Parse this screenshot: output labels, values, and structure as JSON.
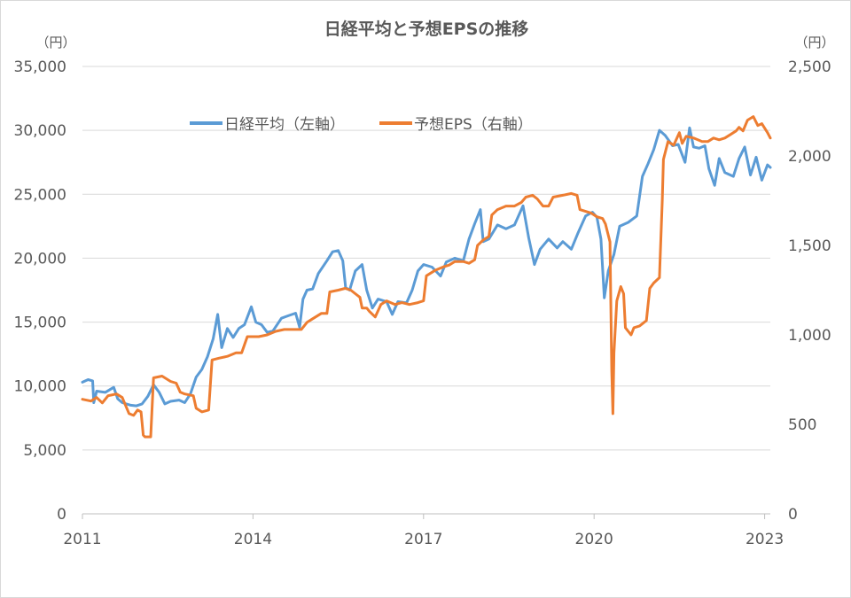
{
  "chart_data": {
    "type": "line",
    "title": "日経平均と予想EPSの推移",
    "y_left_unit": "（円）",
    "y_right_unit": "（円）",
    "y_left_range": [
      0,
      35000
    ],
    "y_right_range": [
      0,
      2500
    ],
    "y_left_ticks": [
      "0",
      "5,000",
      "10,000",
      "15,000",
      "20,000",
      "25,000",
      "30,000",
      "35,000"
    ],
    "y_right_ticks": [
      "0",
      "500",
      "1,000",
      "1,500",
      "2,000",
      "2,500"
    ],
    "x_range": [
      2011,
      2023.1
    ],
    "x_ticks": [
      "2011",
      "2014",
      "2017",
      "2020",
      "2023"
    ],
    "grid": true,
    "legend_position": "top-center",
    "series": [
      {
        "name": "日経平均（左軸）",
        "axis": "left",
        "color": "#5b9bd5",
        "points": [
          [
            2011.0,
            10300
          ],
          [
            2011.1,
            10500
          ],
          [
            2011.18,
            10400
          ],
          [
            2011.2,
            8700
          ],
          [
            2011.25,
            9600
          ],
          [
            2011.4,
            9500
          ],
          [
            2011.55,
            9900
          ],
          [
            2011.62,
            9000
          ],
          [
            2011.7,
            8700
          ],
          [
            2011.85,
            8500
          ],
          [
            2011.95,
            8450
          ],
          [
            2012.05,
            8600
          ],
          [
            2012.15,
            9200
          ],
          [
            2012.25,
            10100
          ],
          [
            2012.35,
            9500
          ],
          [
            2012.45,
            8600
          ],
          [
            2012.55,
            8800
          ],
          [
            2012.7,
            8900
          ],
          [
            2012.8,
            8700
          ],
          [
            2012.9,
            9400
          ],
          [
            2013.0,
            10700
          ],
          [
            2013.1,
            11300
          ],
          [
            2013.2,
            12300
          ],
          [
            2013.3,
            13700
          ],
          [
            2013.38,
            15600
          ],
          [
            2013.45,
            13000
          ],
          [
            2013.55,
            14500
          ],
          [
            2013.65,
            13800
          ],
          [
            2013.75,
            14500
          ],
          [
            2013.85,
            14800
          ],
          [
            2013.97,
            16200
          ],
          [
            2014.05,
            15000
          ],
          [
            2014.15,
            14800
          ],
          [
            2014.25,
            14200
          ],
          [
            2014.35,
            14300
          ],
          [
            2014.5,
            15300
          ],
          [
            2014.62,
            15500
          ],
          [
            2014.75,
            15700
          ],
          [
            2014.82,
            14600
          ],
          [
            2014.88,
            16800
          ],
          [
            2014.95,
            17500
          ],
          [
            2015.05,
            17600
          ],
          [
            2015.15,
            18800
          ],
          [
            2015.3,
            19800
          ],
          [
            2015.4,
            20500
          ],
          [
            2015.5,
            20600
          ],
          [
            2015.58,
            19800
          ],
          [
            2015.63,
            17700
          ],
          [
            2015.7,
            17500
          ],
          [
            2015.8,
            19000
          ],
          [
            2015.92,
            19500
          ],
          [
            2016.0,
            17500
          ],
          [
            2016.1,
            16100
          ],
          [
            2016.2,
            16800
          ],
          [
            2016.35,
            16600
          ],
          [
            2016.45,
            15600
          ],
          [
            2016.55,
            16600
          ],
          [
            2016.7,
            16500
          ],
          [
            2016.8,
            17500
          ],
          [
            2016.9,
            19000
          ],
          [
            2017.0,
            19500
          ],
          [
            2017.15,
            19300
          ],
          [
            2017.3,
            18600
          ],
          [
            2017.4,
            19700
          ],
          [
            2017.55,
            20000
          ],
          [
            2017.7,
            19800
          ],
          [
            2017.8,
            21500
          ],
          [
            2017.9,
            22700
          ],
          [
            2018.0,
            23800
          ],
          [
            2018.05,
            21300
          ],
          [
            2018.15,
            21500
          ],
          [
            2018.3,
            22600
          ],
          [
            2018.45,
            22300
          ],
          [
            2018.6,
            22600
          ],
          [
            2018.75,
            24100
          ],
          [
            2018.85,
            21600
          ],
          [
            2018.95,
            19500
          ],
          [
            2019.05,
            20700
          ],
          [
            2019.2,
            21500
          ],
          [
            2019.35,
            20800
          ],
          [
            2019.45,
            21300
          ],
          [
            2019.6,
            20700
          ],
          [
            2019.72,
            22000
          ],
          [
            2019.85,
            23300
          ],
          [
            2019.97,
            23600
          ],
          [
            2020.05,
            23200
          ],
          [
            2020.12,
            21500
          ],
          [
            2020.18,
            16900
          ],
          [
            2020.25,
            19000
          ],
          [
            2020.35,
            20300
          ],
          [
            2020.45,
            22500
          ],
          [
            2020.6,
            22800
          ],
          [
            2020.75,
            23300
          ],
          [
            2020.85,
            26400
          ],
          [
            2020.95,
            27400
          ],
          [
            2021.05,
            28500
          ],
          [
            2021.15,
            30000
          ],
          [
            2021.25,
            29600
          ],
          [
            2021.38,
            28800
          ],
          [
            2021.48,
            28900
          ],
          [
            2021.6,
            27500
          ],
          [
            2021.68,
            30200
          ],
          [
            2021.75,
            28700
          ],
          [
            2021.85,
            28600
          ],
          [
            2021.95,
            28800
          ],
          [
            2022.02,
            27000
          ],
          [
            2022.12,
            25700
          ],
          [
            2022.2,
            27800
          ],
          [
            2022.3,
            26700
          ],
          [
            2022.45,
            26400
          ],
          [
            2022.55,
            27800
          ],
          [
            2022.65,
            28700
          ],
          [
            2022.75,
            26500
          ],
          [
            2022.85,
            27900
          ],
          [
            2022.95,
            26100
          ],
          [
            2023.05,
            27300
          ],
          [
            2023.1,
            27100
          ]
        ]
      },
      {
        "name": "予想EPS（右軸）",
        "axis": "right",
        "color": "#ed7d31",
        "points": [
          [
            2011.0,
            640
          ],
          [
            2011.15,
            630
          ],
          [
            2011.25,
            650
          ],
          [
            2011.35,
            620
          ],
          [
            2011.45,
            660
          ],
          [
            2011.6,
            670
          ],
          [
            2011.7,
            650
          ],
          [
            2011.82,
            560
          ],
          [
            2011.9,
            550
          ],
          [
            2011.97,
            580
          ],
          [
            2012.03,
            570
          ],
          [
            2012.07,
            440
          ],
          [
            2012.1,
            430
          ],
          [
            2012.2,
            430
          ],
          [
            2012.25,
            760
          ],
          [
            2012.4,
            770
          ],
          [
            2012.55,
            740
          ],
          [
            2012.65,
            730
          ],
          [
            2012.72,
            680
          ],
          [
            2012.8,
            670
          ],
          [
            2012.95,
            660
          ],
          [
            2013.0,
            590
          ],
          [
            2013.1,
            570
          ],
          [
            2013.22,
            580
          ],
          [
            2013.28,
            860
          ],
          [
            2013.4,
            870
          ],
          [
            2013.55,
            880
          ],
          [
            2013.7,
            900
          ],
          [
            2013.8,
            900
          ],
          [
            2013.9,
            990
          ],
          [
            2014.1,
            990
          ],
          [
            2014.25,
            1000
          ],
          [
            2014.4,
            1020
          ],
          [
            2014.55,
            1030
          ],
          [
            2014.7,
            1030
          ],
          [
            2014.85,
            1030
          ],
          [
            2014.95,
            1070
          ],
          [
            2015.05,
            1090
          ],
          [
            2015.2,
            1120
          ],
          [
            2015.3,
            1120
          ],
          [
            2015.35,
            1240
          ],
          [
            2015.5,
            1250
          ],
          [
            2015.62,
            1260
          ],
          [
            2015.72,
            1250
          ],
          [
            2015.8,
            1230
          ],
          [
            2015.88,
            1210
          ],
          [
            2015.92,
            1150
          ],
          [
            2016.0,
            1150
          ],
          [
            2016.05,
            1130
          ],
          [
            2016.15,
            1100
          ],
          [
            2016.25,
            1170
          ],
          [
            2016.35,
            1190
          ],
          [
            2016.5,
            1170
          ],
          [
            2016.62,
            1180
          ],
          [
            2016.75,
            1170
          ],
          [
            2016.9,
            1180
          ],
          [
            2017.0,
            1190
          ],
          [
            2017.05,
            1330
          ],
          [
            2017.2,
            1360
          ],
          [
            2017.35,
            1380
          ],
          [
            2017.45,
            1390
          ],
          [
            2017.55,
            1410
          ],
          [
            2017.7,
            1410
          ],
          [
            2017.8,
            1400
          ],
          [
            2017.9,
            1420
          ],
          [
            2017.95,
            1500
          ],
          [
            2018.05,
            1530
          ],
          [
            2018.15,
            1550
          ],
          [
            2018.2,
            1670
          ],
          [
            2018.3,
            1700
          ],
          [
            2018.45,
            1720
          ],
          [
            2018.6,
            1720
          ],
          [
            2018.72,
            1740
          ],
          [
            2018.8,
            1770
          ],
          [
            2018.92,
            1780
          ],
          [
            2019.0,
            1760
          ],
          [
            2019.1,
            1720
          ],
          [
            2019.2,
            1720
          ],
          [
            2019.28,
            1770
          ],
          [
            2019.45,
            1780
          ],
          [
            2019.6,
            1790
          ],
          [
            2019.7,
            1780
          ],
          [
            2019.75,
            1700
          ],
          [
            2019.85,
            1690
          ],
          [
            2019.95,
            1680
          ],
          [
            2020.05,
            1660
          ],
          [
            2020.15,
            1650
          ],
          [
            2020.2,
            1620
          ],
          [
            2020.28,
            1520
          ],
          [
            2020.31,
            800
          ],
          [
            2020.33,
            560
          ],
          [
            2020.35,
            900
          ],
          [
            2020.4,
            1190
          ],
          [
            2020.47,
            1270
          ],
          [
            2020.52,
            1230
          ],
          [
            2020.55,
            1040
          ],
          [
            2020.65,
            1000
          ],
          [
            2020.7,
            1040
          ],
          [
            2020.8,
            1050
          ],
          [
            2020.92,
            1080
          ],
          [
            2020.98,
            1260
          ],
          [
            2021.05,
            1290
          ],
          [
            2021.15,
            1320
          ],
          [
            2021.2,
            1750
          ],
          [
            2021.22,
            1980
          ],
          [
            2021.3,
            2080
          ],
          [
            2021.4,
            2060
          ],
          [
            2021.5,
            2130
          ],
          [
            2021.55,
            2070
          ],
          [
            2021.62,
            2110
          ],
          [
            2021.75,
            2100
          ],
          [
            2021.9,
            2080
          ],
          [
            2022.0,
            2080
          ],
          [
            2022.1,
            2100
          ],
          [
            2022.2,
            2090
          ],
          [
            2022.3,
            2100
          ],
          [
            2022.4,
            2120
          ],
          [
            2022.5,
            2140
          ],
          [
            2022.55,
            2160
          ],
          [
            2022.62,
            2140
          ],
          [
            2022.7,
            2200
          ],
          [
            2022.8,
            2220
          ],
          [
            2022.88,
            2170
          ],
          [
            2022.95,
            2180
          ],
          [
            2023.05,
            2130
          ],
          [
            2023.1,
            2100
          ]
        ]
      }
    ]
  }
}
